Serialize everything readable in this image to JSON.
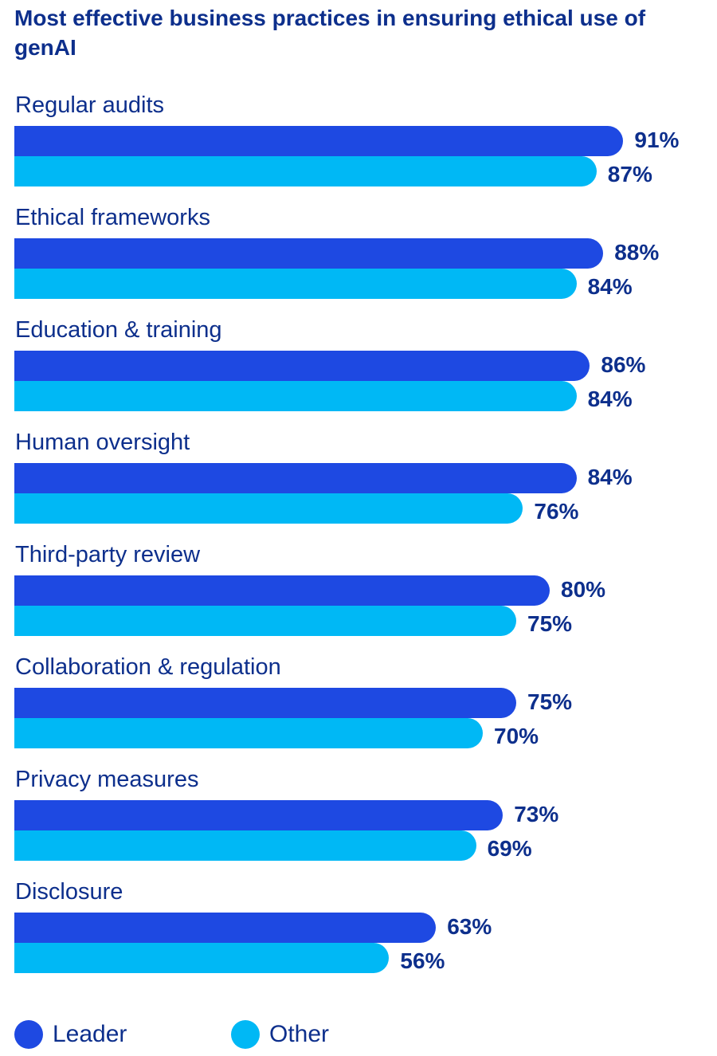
{
  "chart_data": {
    "type": "bar",
    "orientation": "horizontal",
    "title": "Most effective business practices in ensuring ethical use of genAI",
    "categories": [
      "Regular audits",
      "Ethical frameworks",
      "Education & training",
      "Human oversight",
      "Third-party review",
      "Collaboration & regulation",
      "Privacy measures",
      "Disclosure"
    ],
    "series": [
      {
        "name": "Leader",
        "color": "#1E49E2",
        "values": [
          91,
          88,
          86,
          84,
          80,
          75,
          73,
          63
        ]
      },
      {
        "name": "Other",
        "color": "#00B8F5",
        "values": [
          87,
          84,
          84,
          76,
          75,
          70,
          69,
          56
        ]
      }
    ],
    "value_suffix": "%",
    "grid": false,
    "legend_position": "bottom-left"
  }
}
